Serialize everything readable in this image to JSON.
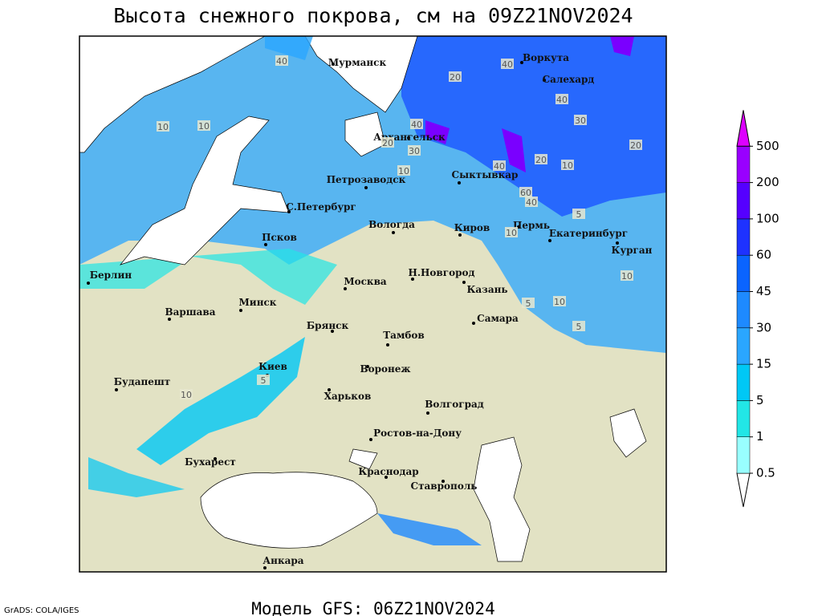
{
  "title": "Высота снежного покрова, см на 09Z21NOV2024",
  "footer": "Модель GFS: 06Z21NOV2024",
  "credit": "GrADS: COLA/IGES",
  "legend": {
    "levels": [
      0.5,
      1,
      5,
      15,
      30,
      45,
      60,
      100,
      200,
      500
    ],
    "colors": [
      "#ffffff",
      "#99ffff",
      "#22e6e6",
      "#00c8f5",
      "#2aa6ff",
      "#1e8aff",
      "#0a64ff",
      "#1e32ff",
      "#5500ff",
      "#9900ff",
      "#dd00ff"
    ]
  },
  "cities": [
    "Мурманск",
    "Воркута",
    "Салехард",
    "Архангельск",
    "Петрозаводск",
    "Сыктывкар",
    "С.Петербург",
    "Вологда",
    "Киров",
    "Пермь",
    "Екатеринбург",
    "Псков",
    "Курган",
    "Берлин",
    "Н.Новгород",
    "Москва",
    "Казань",
    "Минск",
    "Варшава",
    "Самара",
    "Брянск",
    "Тамбов",
    "Киев",
    "Воронеж",
    "Будапешт",
    "Харьков",
    "Волгоград",
    "Ростов-на-Дону",
    "Бухарест",
    "Краснодар",
    "Ставрополь",
    "Анкара"
  ],
  "contour_labels": [
    40,
    20,
    40,
    10,
    10,
    40,
    20,
    30,
    10,
    40,
    20,
    10,
    30,
    20,
    40,
    60,
    40,
    5,
    10,
    10,
    5,
    10,
    5,
    5,
    10
  ]
}
